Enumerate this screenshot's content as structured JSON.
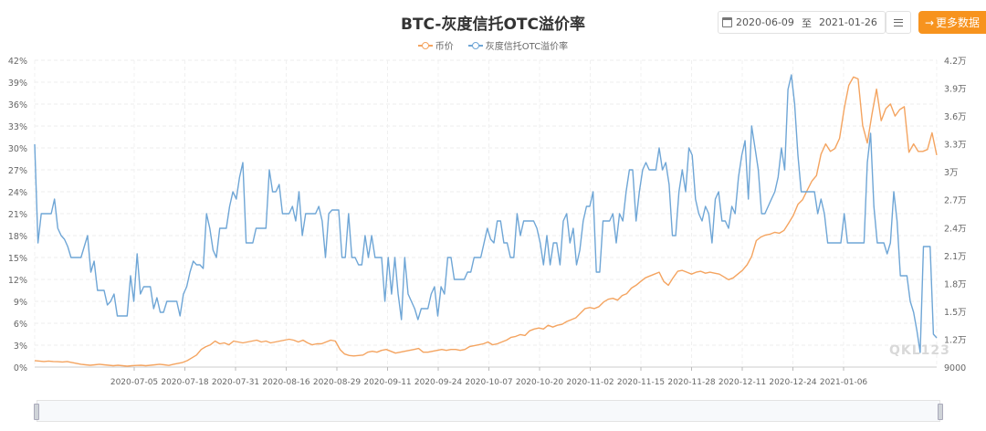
{
  "header": {
    "title": "BTC-灰度信托OTC溢价率",
    "start_date": "2020-06-09",
    "to_label": "至",
    "end_date": "2021-01-26",
    "more_label": "更多数据",
    "accent": "#f7931e"
  },
  "watermark": "QKL123",
  "chart_data": {
    "type": "line",
    "title": "BTC-灰度信托OTC溢价率",
    "series": [
      {
        "name": "币价",
        "axis": "right",
        "color": "#f4a460",
        "values": [
          9700,
          9650,
          9600,
          9650,
          9600,
          9580,
          9550,
          9600,
          9500,
          9400,
          9300,
          9250,
          9200,
          9250,
          9300,
          9250,
          9200,
          9150,
          9200,
          9150,
          9100,
          9150,
          9180,
          9200,
          9150,
          9200,
          9250,
          9300,
          9250,
          9180,
          9300,
          9400,
          9500,
          9700,
          10000,
          10300,
          10900,
          11200,
          11400,
          11800,
          11500,
          11600,
          11400,
          11800,
          11700,
          11600,
          11700,
          11800,
          11900,
          11700,
          11800,
          11600,
          11700,
          11800,
          11900,
          12000,
          11900,
          11700,
          11900,
          11600,
          11400,
          11500,
          11500,
          11700,
          11900,
          11800,
          10900,
          10400,
          10250,
          10200,
          10250,
          10300,
          10600,
          10700,
          10600,
          10800,
          10900,
          10700,
          10500,
          10600,
          10700,
          10800,
          10900,
          11000,
          10600,
          10600,
          10700,
          10800,
          10900,
          10800,
          10900,
          10900,
          10800,
          10900,
          11200,
          11300,
          11400,
          11500,
          11700,
          11400,
          11500,
          11700,
          11900,
          12200,
          12300,
          12500,
          12400,
          12900,
          13100,
          13200,
          13100,
          13500,
          13300,
          13500,
          13600,
          13900,
          14100,
          14300,
          14800,
          15300,
          15400,
          15300,
          15500,
          16000,
          16300,
          16400,
          16200,
          16700,
          16900,
          17500,
          17800,
          18200,
          18600,
          18800,
          19000,
          19200,
          18200,
          17800,
          18600,
          19300,
          19400,
          19200,
          19000,
          19200,
          19300,
          19100,
          19200,
          19100,
          19000,
          18700,
          18400,
          18600,
          19000,
          19400,
          20000,
          20900,
          22600,
          23000,
          23200,
          23300,
          23500,
          23400,
          23700,
          24500,
          25300,
          26500,
          27000,
          28000,
          29000,
          29600,
          31900,
          33000,
          32200,
          32500,
          33600,
          36800,
          39300,
          40200,
          40000,
          35000,
          33100,
          36200,
          38900,
          35500,
          36800,
          37300,
          36000,
          36700,
          37000,
          32100,
          33000,
          32200,
          32200,
          32400,
          34200,
          31800
        ]
      },
      {
        "name": "灰度信托OTC溢价率",
        "axis": "left",
        "color": "#6fa6d6",
        "values": [
          30.5,
          17,
          21,
          21,
          21,
          21,
          23,
          19,
          18,
          17.5,
          16.5,
          15,
          15,
          15,
          15,
          16.5,
          18,
          13,
          14.5,
          10.5,
          10.5,
          10.5,
          8.5,
          9,
          10,
          7,
          7,
          7,
          7,
          12.5,
          9,
          15.5,
          10,
          11,
          11,
          11,
          8,
          9.5,
          7.5,
          7.5,
          9,
          9,
          9,
          9,
          7,
          10,
          11,
          13,
          14.5,
          14,
          14,
          13.5,
          21,
          19,
          16,
          15,
          19,
          19,
          19,
          22,
          24,
          23,
          26,
          28,
          17,
          17,
          17,
          19,
          19,
          19,
          19,
          27,
          24,
          24,
          25,
          21,
          21,
          21,
          22,
          20,
          24,
          18,
          21,
          21,
          21,
          21,
          22,
          20,
          15,
          21,
          21.5,
          21.5,
          21.5,
          15,
          15,
          21,
          15,
          15,
          14,
          14,
          18,
          15,
          18,
          15,
          15,
          15,
          9,
          15,
          10,
          15,
          10,
          6.5,
          15,
          10,
          9,
          8,
          6.5,
          8,
          8,
          8,
          10,
          11,
          7,
          11,
          10,
          15,
          15,
          12,
          12,
          12,
          12,
          13,
          13,
          15,
          15,
          15,
          17,
          19,
          17.5,
          17,
          20,
          20,
          17,
          17,
          15,
          15,
          21,
          18,
          20,
          20,
          20,
          20,
          19,
          17,
          14,
          18,
          14,
          17,
          17,
          14,
          20,
          21,
          17,
          19,
          14,
          16,
          20,
          22,
          22,
          24,
          13,
          13,
          20,
          20,
          20,
          21,
          17,
          21,
          20,
          24,
          27,
          27,
          20,
          24,
          27,
          28,
          27,
          27,
          27,
          30,
          27,
          28,
          25,
          18,
          18,
          24,
          27,
          24,
          30,
          29,
          23,
          21,
          20,
          22,
          21,
          17,
          23,
          24,
          20,
          20,
          19,
          22,
          21,
          26,
          29,
          31,
          23,
          33,
          30,
          27,
          21,
          21,
          22,
          23,
          24,
          26,
          30,
          27,
          38,
          40,
          36,
          29,
          24,
          24,
          24,
          24,
          24,
          21,
          23,
          21,
          17,
          17,
          17,
          17,
          17,
          21,
          17,
          17,
          17,
          17,
          17,
          17,
          28,
          32,
          22,
          17,
          17,
          17,
          15.5,
          17,
          24,
          20,
          12.5,
          12.5,
          12.5,
          9,
          7.5,
          5,
          2,
          16.5,
          16.5,
          16.5,
          4.5,
          4
        ]
      }
    ],
    "x_ticks": [
      "2020-07-05",
      "2020-07-18",
      "2020-07-31",
      "2020-08-16",
      "2020-08-29",
      "2020-09-11",
      "2020-09-24",
      "2020-10-07",
      "2020-10-20",
      "2020-11-02",
      "2020-11-15",
      "2020-11-28",
      "2020-12-11",
      "2020-12-24",
      "2021-01-06"
    ],
    "y_left_ticks": [
      "0%",
      "3%",
      "6%",
      "9%",
      "12%",
      "15%",
      "18%",
      "21%",
      "24%",
      "27%",
      "30%",
      "33%",
      "36%",
      "39%",
      "42%"
    ],
    "y_right_ticks": [
      "9000",
      "1.2万",
      "1.5万",
      "1.8万",
      "2.1万",
      "2.4万",
      "2.7万",
      "3万",
      "3.3万",
      "3.6万",
      "3.9万",
      "4.2万"
    ],
    "y_left_range": [
      0,
      42
    ],
    "y_right_range": [
      9000,
      42000
    ],
    "grid": true,
    "legend_position": "top-center"
  }
}
